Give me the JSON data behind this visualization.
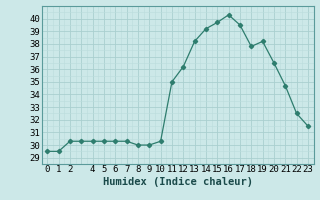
{
  "x": [
    0,
    1,
    2,
    3,
    4,
    5,
    6,
    7,
    8,
    9,
    10,
    11,
    12,
    13,
    14,
    15,
    16,
    17,
    18,
    19,
    20,
    21,
    22,
    23
  ],
  "y": [
    29.5,
    29.5,
    30.3,
    30.3,
    30.3,
    30.3,
    30.3,
    30.3,
    30.0,
    30.0,
    30.3,
    35.0,
    36.2,
    38.2,
    39.2,
    39.7,
    40.3,
    39.5,
    37.8,
    38.2,
    36.5,
    34.7,
    32.5,
    31.5
  ],
  "line_color": "#2e7d6e",
  "marker": "D",
  "marker_size": 2.2,
  "bg_color": "#cce8e8",
  "grid_major_color": "#aacfcf",
  "grid_minor_color": "#bbdddd",
  "xlabel": "Humidex (Indice chaleur)",
  "ylim": [
    29,
    41
  ],
  "xlim": [
    -0.5,
    23.5
  ],
  "yticks": [
    29,
    30,
    31,
    32,
    33,
    34,
    35,
    36,
    37,
    38,
    39,
    40
  ],
  "xtick_labels": [
    "0",
    "1",
    "2",
    "",
    "4",
    "5",
    "6",
    "7",
    "8",
    "9",
    "10",
    "11",
    "12",
    "13",
    "14",
    "15",
    "16",
    "17",
    "18",
    "19",
    "20",
    "21",
    "22",
    "23"
  ],
  "xlabel_fontsize": 7.5,
  "tick_fontsize": 6.5
}
